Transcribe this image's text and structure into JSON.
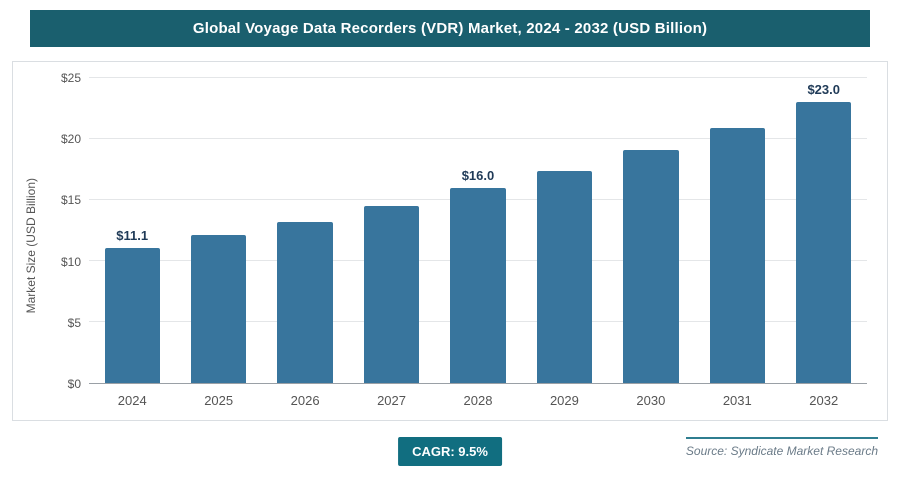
{
  "header": {
    "title": "Global Voyage Data Recorders (VDR) Market, 2024 - 2032 (USD Billion)"
  },
  "chart_data": {
    "type": "bar",
    "title": "Global Voyage Data Recorders (VDR) Market, 2024 - 2032 (USD Billion)",
    "categories": [
      "2024",
      "2025",
      "2026",
      "2027",
      "2028",
      "2029",
      "2030",
      "2031",
      "2032"
    ],
    "values": [
      11.1,
      12.1,
      13.2,
      14.5,
      16.0,
      17.4,
      19.1,
      20.9,
      23.0
    ],
    "data_labels": [
      "$11.1",
      null,
      null,
      null,
      "$16.0",
      null,
      null,
      null,
      "$23.0"
    ],
    "xlabel": "",
    "ylabel": "Market Size (USD Billion)",
    "ylim": [
      0,
      25
    ],
    "yticks": [
      "$0",
      "$5",
      "$10",
      "$15",
      "$20",
      "$25"
    ],
    "grid": true,
    "legend": "none",
    "bar_color": "#38759d"
  },
  "footer": {
    "cagr_label": "CAGR: 9.5%",
    "source": "Source: Syndicate Market Research"
  },
  "colors": {
    "header_bg": "#1a5f6e",
    "badge_bg": "#116e80",
    "bar": "#38759d",
    "source_line": "#2f7e90"
  }
}
